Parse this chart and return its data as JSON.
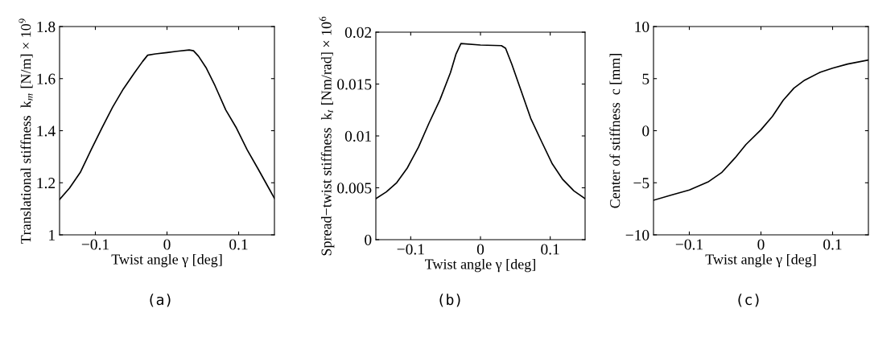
{
  "chart_data": [
    {
      "type": "line",
      "xlabel": "Twist angle γ [deg]",
      "ylabel": "Translational stiffness  k$_{m}$ [N/m] × 10$^{9}$",
      "annotations": [
        "(a)"
      ],
      "series": [
        {
          "color": "#000000",
          "x": [
            -0.15,
            -0.136,
            -0.121,
            -0.106,
            -0.091,
            -0.076,
            -0.061,
            -0.046,
            -0.034,
            -0.027,
            -0.016,
            0,
            0.014,
            0.031,
            0.037,
            0.044,
            0.055,
            0.067,
            0.082,
            0.097,
            0.112,
            0.127,
            0.142,
            0.15
          ],
          "values": [
            1.136,
            1.18,
            1.24,
            1.326,
            1.41,
            1.49,
            1.56,
            1.62,
            1.666,
            1.69,
            1.695,
            1.7,
            1.705,
            1.71,
            1.707,
            1.686,
            1.64,
            1.573,
            1.48,
            1.41,
            1.326,
            1.254,
            1.18,
            1.14
          ]
        }
      ],
      "xlim": [
        -0.15,
        0.15
      ],
      "xticks": [
        -0.1,
        0,
        0.1
      ],
      "ylim": [
        1,
        1.8
      ],
      "yticks": [
        1,
        1.2,
        1.4,
        1.6,
        1.8
      ],
      "grid": false,
      "legend": false
    },
    {
      "type": "line",
      "xlabel": "Twist angle γ [deg]",
      "ylabel": "Spread−twist stiffness  k$_{t}$ [Nm/rad] × 10$^{6}$",
      "annotations": [
        "(b)"
      ],
      "series": [
        {
          "color": "#000000",
          "x": [
            -0.15,
            -0.135,
            -0.12,
            -0.105,
            -0.089,
            -0.074,
            -0.058,
            -0.043,
            -0.035,
            -0.028,
            0,
            0.03,
            0.036,
            0.045,
            0.057,
            0.072,
            0.088,
            0.103,
            0.118,
            0.134,
            0.15
          ],
          "values": [
            0.00396,
            0.0046,
            0.0055,
            0.0069,
            0.0089,
            0.0112,
            0.0135,
            0.0161,
            0.0179,
            0.0189,
            0.01876,
            0.0187,
            0.01845,
            0.0169,
            0.0146,
            0.0117,
            0.0094,
            0.0073,
            0.0058,
            0.0047,
            0.00396
          ]
        }
      ],
      "xlim": [
        -0.15,
        0.15
      ],
      "xticks": [
        -0.1,
        0,
        0.1
      ],
      "ylim": [
        0,
        0.02
      ],
      "yticks": [
        0,
        0.005,
        0.01,
        0.015,
        0.02
      ],
      "grid": false,
      "legend": false
    },
    {
      "type": "line",
      "xlabel": "Twist angle γ [deg]",
      "ylabel": "Center of stiffness  c [mm]",
      "annotations": [
        "(c)"
      ],
      "series": [
        {
          "color": "#000000",
          "x": [
            -0.15,
            -0.126,
            -0.1,
            -0.074,
            -0.055,
            -0.036,
            -0.021,
            0,
            0.016,
            0.031,
            0.046,
            0.061,
            0.083,
            0.1,
            0.121,
            0.15
          ],
          "values": [
            -6.68,
            -6.2,
            -5.7,
            -4.93,
            -4.03,
            -2.6,
            -1.33,
            0.09,
            1.37,
            2.92,
            4.08,
            4.85,
            5.62,
            6.0,
            6.4,
            6.78
          ]
        }
      ],
      "xlim": [
        -0.15,
        0.15
      ],
      "xticks": [
        -0.1,
        0,
        0.1
      ],
      "ylim": [
        -10,
        10
      ],
      "yticks": [
        -10,
        -5,
        0,
        5,
        10
      ],
      "grid": false,
      "legend": false
    }
  ]
}
